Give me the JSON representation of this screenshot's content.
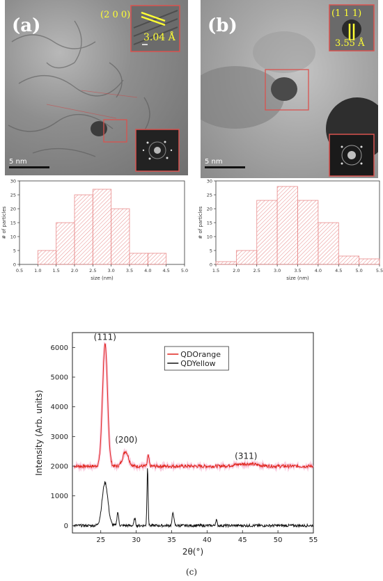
{
  "panels": {
    "a": {
      "letter": "(a)",
      "plane": "(2 0 0)",
      "spacing": "3.04 Å",
      "scale_bar": "5 nm"
    },
    "b": {
      "letter": "(b)",
      "plane": "(1 1 1)",
      "spacing": "3.55 Å",
      "scale_bar": "5 nm"
    },
    "c": {
      "caption": "(c)"
    }
  },
  "colors": {
    "hist_hatch": "#e88a8a",
    "roi_box": "#d9534f",
    "orange_series": "#e0241b",
    "yellow_series": "#111111",
    "label_yellow": "#ffff33"
  },
  "chart_data": [
    {
      "type": "bar",
      "xlabel": "size (nm)",
      "ylabel": "# of particles",
      "bin_edges": [
        1.0,
        1.5,
        2.0,
        2.5,
        3.0,
        3.5,
        4.0,
        4.5
      ],
      "values": [
        5,
        15,
        25,
        27,
        20,
        4,
        4
      ],
      "xlim": [
        0.5,
        5.0
      ],
      "ylim": [
        0,
        30
      ],
      "xticks": [
        "0.5",
        "1.0",
        "1.5",
        "2.0",
        "2.5",
        "3.0",
        "3.5",
        "4.0",
        "4.5",
        "5.0"
      ],
      "yticks": [
        "0",
        "5",
        "10",
        "15",
        "20",
        "25",
        "30"
      ]
    },
    {
      "type": "bar",
      "xlabel": "size (nm)",
      "ylabel": "# of particles",
      "bin_edges": [
        1.5,
        2.0,
        2.5,
        3.0,
        3.5,
        4.0,
        4.5,
        5.0,
        5.5
      ],
      "values": [
        1,
        5,
        23,
        28,
        23,
        15,
        3,
        2
      ],
      "xlim": [
        1.5,
        5.5
      ],
      "ylim": [
        0,
        30
      ],
      "xticks": [
        "1.5",
        "2.0",
        "2.5",
        "3.0",
        "3.5",
        "4.0",
        "4.5",
        "5.0",
        "5.5"
      ],
      "yticks": [
        "0",
        "5",
        "10",
        "15",
        "20",
        "25",
        "30"
      ]
    },
    {
      "type": "line",
      "xlabel": "2θ(°)",
      "ylabel": "Intensity (Arb. units)",
      "xlim": [
        21,
        55
      ],
      "ylim": [
        -250,
        6500
      ],
      "xticks": [
        "25",
        "30",
        "35",
        "40",
        "45",
        "50",
        "55"
      ],
      "yticks": [
        "0",
        "1000",
        "2000",
        "3000",
        "4000",
        "5000",
        "6000"
      ],
      "legend": "top-center",
      "annotations": [
        {
          "text": "(111)",
          "x": 25.6,
          "y": 6250
        },
        {
          "text": "(200)",
          "x": 28.6,
          "y": 2800
        },
        {
          "text": "(311)",
          "x": 45.5,
          "y": 2250
        }
      ],
      "series": [
        {
          "name": "QDOrange",
          "baseline": 2000,
          "peaks": [
            {
              "x": 25.6,
              "height": 4100,
              "width": 0.35
            },
            {
              "x": 28.5,
              "height": 500,
              "width": 0.4
            },
            {
              "x": 31.7,
              "height": 350,
              "width": 0.12
            },
            {
              "x": 45.5,
              "height": 80,
              "width": 1.5
            }
          ]
        },
        {
          "name": "QDYellow",
          "baseline": 0,
          "peaks": [
            {
              "x": 25.6,
              "height": 1450,
              "width": 0.4
            },
            {
              "x": 27.4,
              "height": 450,
              "width": 0.12
            },
            {
              "x": 31.6,
              "height": 1980,
              "width": 0.08
            },
            {
              "x": 35.2,
              "height": 450,
              "width": 0.12
            },
            {
              "x": 29.8,
              "height": 250,
              "width": 0.1
            },
            {
              "x": 41.3,
              "height": 200,
              "width": 0.1
            }
          ]
        }
      ]
    }
  ]
}
